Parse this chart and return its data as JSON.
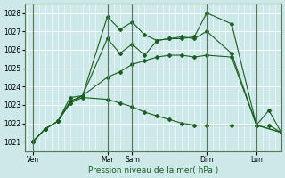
{
  "title": "Pression niveau de la mer( hPa )",
  "background_color": "#cce8e8",
  "grid_color": "#ffffff",
  "line_color": "#1a5e20",
  "ylim": [
    1020.5,
    1028.5
  ],
  "yticks": [
    1021,
    1022,
    1023,
    1024,
    1025,
    1026,
    1027,
    1028
  ],
  "x_day_labels": [
    "Ven",
    "Mar",
    "Sam",
    "Dim",
    "Lun"
  ],
  "x_day_positions": [
    0,
    36,
    48,
    84,
    108
  ],
  "x_vlines": [
    0,
    36,
    48,
    84,
    108
  ],
  "xlim": [
    -4,
    120
  ],
  "series": [
    {
      "x": [
        0,
        6,
        12,
        18,
        24,
        36,
        42,
        48,
        54,
        60,
        66,
        72,
        78,
        84,
        96,
        108,
        114,
        120
      ],
      "y": [
        1021.0,
        1021.7,
        1022.1,
        1023.1,
        1023.5,
        1027.8,
        1027.1,
        1027.5,
        1026.8,
        1026.5,
        1026.6,
        1026.6,
        1026.7,
        1028.0,
        1027.4,
        1021.9,
        1022.7,
        1021.5
      ]
    },
    {
      "x": [
        0,
        6,
        12,
        18,
        24,
        36,
        42,
        48,
        54,
        60,
        66,
        72,
        78,
        84,
        96,
        108,
        120
      ],
      "y": [
        1021.0,
        1021.7,
        1022.1,
        1023.4,
        1023.5,
        1026.6,
        1025.8,
        1026.3,
        1025.7,
        1026.5,
        1026.6,
        1026.7,
        1026.6,
        1027.0,
        1025.8,
        1021.9,
        1021.5
      ]
    },
    {
      "x": [
        0,
        6,
        12,
        18,
        24,
        36,
        42,
        48,
        54,
        60,
        66,
        72,
        78,
        84,
        96,
        108,
        120
      ],
      "y": [
        1021.0,
        1021.7,
        1022.1,
        1023.2,
        1023.5,
        1024.5,
        1024.8,
        1025.2,
        1025.4,
        1025.6,
        1025.7,
        1025.7,
        1025.6,
        1025.7,
        1025.6,
        1021.9,
        1021.5
      ]
    },
    {
      "x": [
        0,
        6,
        12,
        18,
        24,
        36,
        42,
        48,
        54,
        60,
        66,
        72,
        78,
        84,
        96,
        108,
        114,
        120
      ],
      "y": [
        1021.0,
        1021.7,
        1022.1,
        1023.1,
        1023.4,
        1023.3,
        1023.1,
        1022.9,
        1022.6,
        1022.4,
        1022.2,
        1022.0,
        1021.9,
        1021.9,
        1021.9,
        1021.9,
        1021.9,
        1021.5
      ]
    }
  ]
}
